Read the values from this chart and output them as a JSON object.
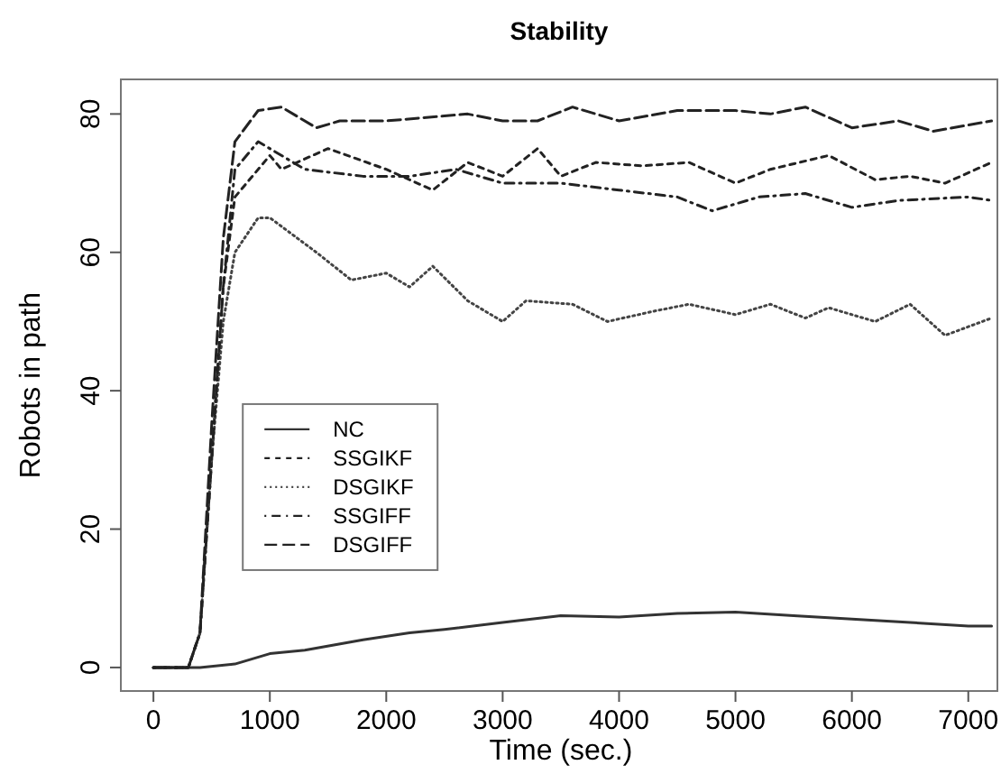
{
  "chart_data": {
    "type": "line",
    "title": "Stability",
    "xlabel": "Time (sec.)",
    "ylabel": "Robots in path",
    "xlim": [
      -280,
      7250
    ],
    "ylim": [
      -3.4,
      85
    ],
    "xticks": [
      0,
      1000,
      2000,
      3000,
      4000,
      5000,
      6000,
      7000
    ],
    "yticks": [
      0,
      20,
      40,
      60,
      80
    ],
    "grid": false,
    "legend": "bottom left",
    "series": [
      {
        "name": "NC",
        "color": "#333333",
        "line_style": "solid",
        "x": [
          0,
          400,
          700,
          1000,
          1300,
          1800,
          2200,
          2500,
          3000,
          3500,
          4000,
          4500,
          5000,
          5500,
          6000,
          6500,
          7000,
          7200
        ],
        "values": [
          0,
          0,
          0.5,
          2,
          2.5,
          4,
          5,
          5.5,
          6.5,
          7.5,
          7.3,
          7.8,
          8,
          7.5,
          7,
          6.5,
          6,
          6
        ]
      },
      {
        "name": "SSGIKF",
        "color": "#222222",
        "line_style": "dashed",
        "x": [
          0,
          300,
          400,
          500,
          600,
          700,
          1000,
          1100,
          1500,
          2000,
          2400,
          2700,
          3000,
          3300,
          3500,
          3800,
          4200,
          4600,
          5000,
          5300,
          5800,
          6200,
          6500,
          6800,
          7200
        ],
        "values": [
          0,
          0,
          5,
          30,
          55,
          68,
          74,
          72,
          75,
          72,
          69,
          73,
          71,
          75,
          71,
          73,
          72.5,
          73,
          70,
          72,
          74,
          70.5,
          71,
          70,
          73
        ]
      },
      {
        "name": "DSGIKF",
        "color": "#444444",
        "line_style": "dotted",
        "x": [
          0,
          300,
          400,
          500,
          600,
          700,
          900,
          1000,
          1400,
          1700,
          2000,
          2200,
          2400,
          2700,
          3000,
          3200,
          3600,
          3900,
          4300,
          4600,
          5000,
          5300,
          5600,
          5800,
          6200,
          6500,
          6800,
          7200
        ],
        "values": [
          0,
          0,
          5,
          30,
          50,
          60,
          65,
          65,
          60,
          56,
          57,
          55,
          58,
          53,
          50,
          53,
          52.5,
          50,
          51.5,
          52.5,
          51,
          52.5,
          50.5,
          52,
          50,
          52.5,
          48,
          50.5
        ]
      },
      {
        "name": "SSGIFF",
        "color": "#222222",
        "line_style": "dotdash",
        "x": [
          0,
          300,
          400,
          500,
          600,
          700,
          900,
          1300,
          1800,
          2200,
          2600,
          3000,
          3500,
          4000,
          4500,
          4800,
          5200,
          5600,
          6000,
          6400,
          7000,
          7200
        ],
        "values": [
          0,
          0,
          5,
          30,
          55,
          72,
          76,
          72,
          71,
          71,
          72,
          70,
          70,
          69,
          68,
          66,
          68,
          68.5,
          66.5,
          67.5,
          68,
          67.5
        ]
      },
      {
        "name": "DSGIFF",
        "color": "#222222",
        "line_style": "longdash",
        "x": [
          0,
          300,
          400,
          500,
          600,
          700,
          900,
          1100,
          1400,
          1600,
          2000,
          2700,
          3000,
          3300,
          3600,
          4000,
          4500,
          5000,
          5300,
          5600,
          6000,
          6400,
          6700,
          7200
        ],
        "values": [
          0,
          0,
          5,
          35,
          62,
          76,
          80.5,
          81,
          78,
          79,
          79,
          80,
          79,
          79,
          81,
          79,
          80.5,
          80.5,
          80,
          81,
          78,
          79,
          77.5,
          79
        ]
      }
    ]
  }
}
